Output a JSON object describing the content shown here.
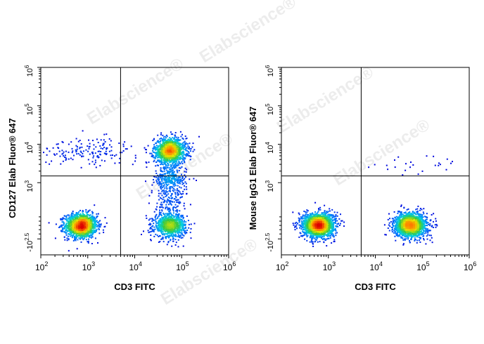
{
  "watermark": "Elabscience®",
  "chart_data": [
    {
      "type": "scatter",
      "subtype": "flow-cytometry-density",
      "xlabel": "CD3 FITC",
      "ylabel": "CD127 Elab Fluor® 647",
      "x_scale": "log",
      "y_scale": "biexponential",
      "xlim": [
        100,
        1000000
      ],
      "ylim": [
        -316,
        1000000
      ],
      "x_ticks": [
        {
          "base": "10",
          "exp": "2"
        },
        {
          "base": "10",
          "exp": "3"
        },
        {
          "base": "10",
          "exp": "4"
        },
        {
          "base": "10",
          "exp": "5"
        },
        {
          "base": "10",
          "exp": "6"
        }
      ],
      "y_ticks": [
        {
          "base": "-10",
          "exp": "2.5"
        },
        {
          "base": "10",
          "exp": "3"
        },
        {
          "base": "10",
          "exp": "4"
        },
        {
          "base": "10",
          "exp": "5"
        },
        {
          "base": "10",
          "exp": "6"
        }
      ],
      "gate": {
        "x": 5000,
        "y": 1500
      },
      "populations": [
        {
          "x_center": 700,
          "y_center": 10,
          "density": "high",
          "count": 1500
        },
        {
          "x_center": 55000,
          "y_center": 7000,
          "density": "high",
          "count": 1300
        },
        {
          "x_center": 55000,
          "y_center": 10,
          "density": "medium",
          "count": 900
        },
        {
          "x_center": 55000,
          "y_center": 1000,
          "density": "low",
          "count": 450
        },
        {
          "x_center": 900,
          "y_center": 7000,
          "density": "sparse",
          "count": 170
        }
      ]
    },
    {
      "type": "scatter",
      "subtype": "flow-cytometry-density",
      "xlabel": "CD3 FITC",
      "ylabel": "Mouse IgG1 Elab Fluor® 647",
      "x_scale": "log",
      "y_scale": "biexponential",
      "xlim": [
        100,
        1000000
      ],
      "ylim": [
        -316,
        1000000
      ],
      "x_ticks": [
        {
          "base": "10",
          "exp": "2"
        },
        {
          "base": "10",
          "exp": "3"
        },
        {
          "base": "10",
          "exp": "4"
        },
        {
          "base": "10",
          "exp": "5"
        },
        {
          "base": "10",
          "exp": "6"
        }
      ],
      "y_ticks": [
        {
          "base": "-10",
          "exp": "2.5"
        },
        {
          "base": "10",
          "exp": "3"
        },
        {
          "base": "10",
          "exp": "4"
        },
        {
          "base": "10",
          "exp": "5"
        },
        {
          "base": "10",
          "exp": "6"
        }
      ],
      "gate": {
        "x": 5000,
        "y": 1500
      },
      "populations": [
        {
          "x_center": 600,
          "y_center": 20,
          "density": "high",
          "count": 1900
        },
        {
          "x_center": 55000,
          "y_center": 20,
          "density": "high",
          "count": 1700
        },
        {
          "x_center": 40000,
          "y_center": 3000,
          "density": "sparse",
          "count": 25
        }
      ]
    }
  ]
}
